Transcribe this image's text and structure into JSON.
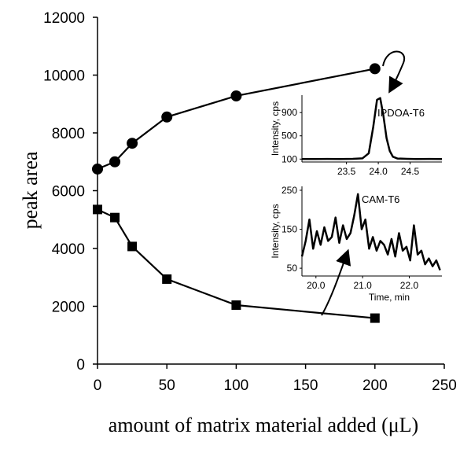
{
  "chart_data": {
    "type": "scatter",
    "xlabel": "amount of matrix material added (μL)",
    "ylabel": "peak area",
    "xlim": [
      0,
      250
    ],
    "ylim": [
      0,
      12000
    ],
    "xticks": [
      "0",
      "50",
      "100",
      "150",
      "200",
      "250"
    ],
    "yticks": [
      "0",
      "2000",
      "4000",
      "6000",
      "8000",
      "10000",
      "12000"
    ],
    "grid": false,
    "series": [
      {
        "marker": "circle",
        "x": [
          0,
          12.5,
          25,
          50,
          100,
          200
        ],
        "values": [
          6750,
          7000,
          7640,
          8550,
          9280,
          10220
        ]
      },
      {
        "marker": "square",
        "x": [
          0,
          12.5,
          25,
          50,
          100,
          200
        ],
        "values": [
          5350,
          5070,
          4070,
          2940,
          2040,
          1590
        ]
      }
    ],
    "insets": [
      {
        "label": "IPDOA-T6",
        "ylabel": "Intensity, cps",
        "xlim": [
          22.8,
          25.0
        ],
        "ylim": [
          50,
          1200
        ],
        "yticks": [
          "100",
          "500",
          "900"
        ],
        "xticks": [
          "23.5",
          "24.0",
          "24.5"
        ],
        "x": [
          22.8,
          23.0,
          23.2,
          23.4,
          23.6,
          23.75,
          23.85,
          23.92,
          23.98,
          24.03,
          24.08,
          24.13,
          24.18,
          24.23,
          24.3,
          24.45,
          24.6,
          24.8,
          25.0
        ],
        "y": [
          100,
          100,
          102,
          100,
          104,
          112,
          200,
          650,
          1120,
          1150,
          850,
          460,
          240,
          140,
          110,
          104,
          100,
          102,
          100
        ]
      },
      {
        "label": "CAM-T6",
        "ylabel": "Intensity, cps",
        "xlabel": "Time, min",
        "xlim": [
          19.7,
          22.7
        ],
        "ylim": [
          30,
          260
        ],
        "yticks": [
          "50",
          "150",
          "250"
        ],
        "xticks": [
          "20.0",
          "21.0",
          "22.0"
        ],
        "x": [
          19.7,
          19.78,
          19.86,
          19.94,
          20.02,
          20.1,
          20.18,
          20.26,
          20.34,
          20.42,
          20.5,
          20.58,
          20.66,
          20.74,
          20.82,
          20.9,
          20.98,
          21.06,
          21.14,
          21.22,
          21.3,
          21.38,
          21.46,
          21.54,
          21.62,
          21.7,
          21.78,
          21.86,
          21.94,
          22.02,
          22.1,
          22.18,
          22.26,
          22.34,
          22.42,
          22.5,
          22.58,
          22.66
        ],
        "y": [
          80,
          120,
          175,
          100,
          145,
          110,
          155,
          120,
          130,
          180,
          115,
          160,
          125,
          140,
          185,
          240,
          150,
          175,
          100,
          130,
          95,
          120,
          110,
          85,
          125,
          80,
          140,
          95,
          105,
          70,
          160,
          85,
          95,
          60,
          75,
          55,
          70,
          45
        ]
      }
    ]
  }
}
